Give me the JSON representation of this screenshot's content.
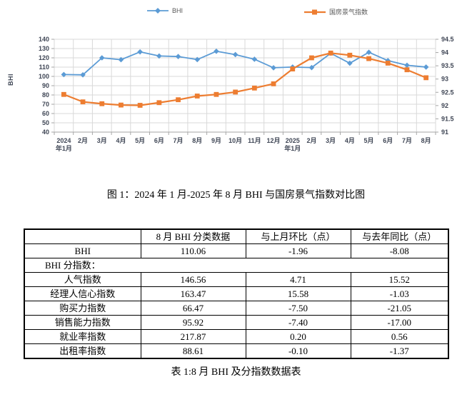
{
  "chart_data": {
    "type": "line",
    "categories": [
      "2024年1月",
      "2月",
      "3月",
      "4月",
      "5月",
      "6月",
      "7月",
      "8月",
      "9月",
      "10月",
      "11月",
      "12月",
      "2025年1月",
      "2月",
      "3月",
      "4月",
      "5月",
      "6月",
      "7月",
      "8月"
    ],
    "series": [
      {
        "name": "BHI",
        "axis": "left",
        "color": "#5B9BD5",
        "marker": "diamond",
        "values": [
          102.0,
          101.7,
          120.0,
          118.0,
          126.4,
          122.0,
          121.4,
          118.14,
          127.1,
          123.5,
          118.5,
          109.3,
          110.1,
          109.5,
          124.9,
          114.2,
          126.0,
          117.0,
          112.02,
          110.06
        ]
      },
      {
        "name": "国房景气指数",
        "axis": "right",
        "color": "#ED7D31",
        "marker": "square",
        "values": [
          92.42,
          92.14,
          92.07,
          92.02,
          92.01,
          92.11,
          92.22,
          92.36,
          92.42,
          92.51,
          92.66,
          92.82,
          93.38,
          93.8,
          93.98,
          93.9,
          93.77,
          93.6,
          93.35,
          93.05
        ]
      }
    ],
    "left_axis": {
      "title": "BHI",
      "min": 40,
      "max": 140,
      "step": 10
    },
    "right_axis": {
      "min": 91,
      "max": 94.5,
      "step": 0.5
    },
    "grid": true,
    "legend_position": "top",
    "colors": {
      "gridline": "#D9D9D9",
      "axis_line": "#A6A6A6",
      "axis_text": "#404756",
      "legend_text": "#595959"
    }
  },
  "figure_caption": "图 1：2024 年 1 月-2025 年 8 月 BHI 与国房景气指数对比图",
  "table": {
    "headers": [
      "",
      "8 月 BHI 分类数据",
      "与上月环比（点）",
      "与去年同比（点）"
    ],
    "rows": [
      {
        "label": "BHI",
        "values": [
          "110.06",
          "-1.96",
          "-8.08"
        ]
      },
      {
        "label": "BHI 分指数：",
        "span": true
      },
      {
        "label": "人气指数",
        "values": [
          "146.56",
          "4.71",
          "15.52"
        ]
      },
      {
        "label": "经理人信心指数",
        "values": [
          "163.47",
          "15.58",
          "-1.03"
        ]
      },
      {
        "label": "购买力指数",
        "values": [
          "66.47",
          "-7.50",
          "-21.05"
        ]
      },
      {
        "label": "销售能力指数",
        "values": [
          "95.92",
          "-7.40",
          "-17.00"
        ]
      },
      {
        "label": "就业率指数",
        "values": [
          "217.87",
          "0.20",
          "0.56"
        ]
      },
      {
        "label": "出租率指数",
        "values": [
          "88.61",
          "-0.10",
          "-1.37"
        ]
      }
    ]
  },
  "table_caption": "表 1:8 月 BHI 及分指数数据表"
}
